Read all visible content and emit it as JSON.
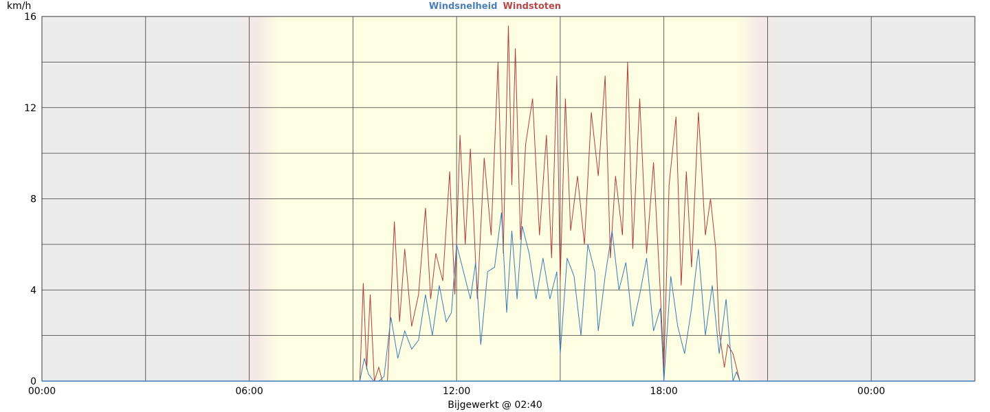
{
  "chart_data": {
    "type": "line",
    "title_parts": [
      {
        "text": "Windsnelheid",
        "color": "#4a7fb5"
      },
      {
        "text": "Windstoten",
        "color": "#b5474a"
      }
    ],
    "ylabel": "km/h",
    "xlabel": "Bijgewerkt @ 02:40",
    "x_tick_labels": [
      "00:00",
      "06:00",
      "12:00",
      "18:00",
      "00:00"
    ],
    "y_tick_labels": [
      "0",
      "4",
      "8",
      "12",
      "16"
    ],
    "ylim": [
      0,
      16
    ],
    "x_range_hours": [
      0,
      27
    ],
    "daylight_hours": [
      6.0,
      21.0
    ],
    "grid": true,
    "colors": {
      "night_bg": "#ececec",
      "day_bg": "#fefee2",
      "grid": "#3a3a3a",
      "speed": "#3b7ab8",
      "gusts": "#b23b3b"
    },
    "series": [
      {
        "name": "Windsnelheid",
        "x": [
          9.2,
          9.33,
          9.45,
          9.6,
          9.75,
          9.9,
          10.1,
          10.3,
          10.5,
          10.7,
          10.9,
          11.1,
          11.3,
          11.5,
          11.7,
          11.85,
          12.0,
          12.2,
          12.4,
          12.55,
          12.7,
          12.9,
          13.1,
          13.3,
          13.45,
          13.6,
          13.75,
          13.9,
          14.1,
          14.3,
          14.5,
          14.7,
          14.9,
          15.0,
          15.2,
          15.4,
          15.6,
          15.8,
          16.0,
          16.1,
          16.3,
          16.5,
          16.7,
          16.9,
          17.1,
          17.3,
          17.5,
          17.7,
          17.9,
          18.0,
          18.2,
          18.4,
          18.6,
          18.8,
          19.0,
          19.2,
          19.4,
          19.6,
          19.8,
          20.0,
          20.1,
          20.2
        ],
        "y": [
          0.0,
          1.0,
          0.3,
          0.0,
          0.0,
          0.2,
          2.8,
          1.0,
          2.2,
          1.4,
          1.8,
          3.8,
          2.0,
          4.2,
          2.6,
          3.0,
          6.0,
          4.8,
          3.6,
          5.2,
          1.6,
          4.8,
          5.0,
          7.4,
          3.0,
          6.6,
          3.6,
          6.8,
          5.6,
          3.6,
          5.4,
          3.6,
          4.8,
          1.2,
          5.4,
          4.6,
          2.0,
          6.0,
          4.8,
          2.2,
          4.6,
          6.6,
          4.0,
          5.2,
          2.4,
          3.8,
          5.4,
          2.2,
          3.2,
          0.0,
          4.6,
          2.4,
          1.2,
          3.2,
          5.8,
          2.0,
          4.2,
          1.2,
          3.6,
          0.0,
          0.4,
          0.0
        ]
      },
      {
        "name": "Windstoten",
        "x": [
          9.2,
          9.3,
          9.4,
          9.5,
          9.62,
          9.75,
          9.85,
          10.0,
          10.2,
          10.35,
          10.5,
          10.7,
          10.9,
          11.1,
          11.25,
          11.4,
          11.6,
          11.8,
          11.95,
          12.1,
          12.25,
          12.4,
          12.6,
          12.8,
          13.0,
          13.2,
          13.35,
          13.5,
          13.6,
          13.7,
          13.85,
          14.0,
          14.2,
          14.4,
          14.6,
          14.75,
          14.9,
          15.0,
          15.15,
          15.3,
          15.5,
          15.7,
          15.9,
          16.1,
          16.3,
          16.45,
          16.6,
          16.8,
          16.95,
          17.1,
          17.3,
          17.5,
          17.7,
          17.9,
          18.0,
          18.15,
          18.35,
          18.5,
          18.65,
          18.8,
          19.0,
          19.2,
          19.35,
          19.5,
          19.6,
          19.75,
          19.85,
          20.0,
          20.1,
          20.2
        ],
        "y": [
          0.0,
          4.3,
          0.5,
          3.8,
          0.0,
          0.6,
          0.0,
          0.0,
          7.0,
          2.6,
          5.8,
          2.4,
          3.8,
          7.6,
          3.6,
          5.6,
          4.4,
          9.2,
          3.8,
          10.8,
          6.0,
          10.2,
          3.6,
          9.8,
          6.4,
          14.0,
          5.6,
          15.6,
          8.6,
          14.6,
          6.2,
          10.4,
          12.4,
          6.4,
          10.8,
          5.4,
          13.4,
          4.4,
          12.4,
          6.6,
          9.0,
          6.0,
          11.8,
          9.0,
          13.4,
          5.4,
          9.0,
          6.4,
          14.0,
          5.8,
          12.4,
          5.6,
          9.6,
          3.8,
          0.6,
          8.6,
          11.6,
          4.2,
          9.2,
          5.0,
          11.8,
          6.4,
          8.0,
          5.8,
          2.2,
          0.6,
          1.6,
          1.2,
          0.6,
          0.0
        ]
      }
    ]
  }
}
